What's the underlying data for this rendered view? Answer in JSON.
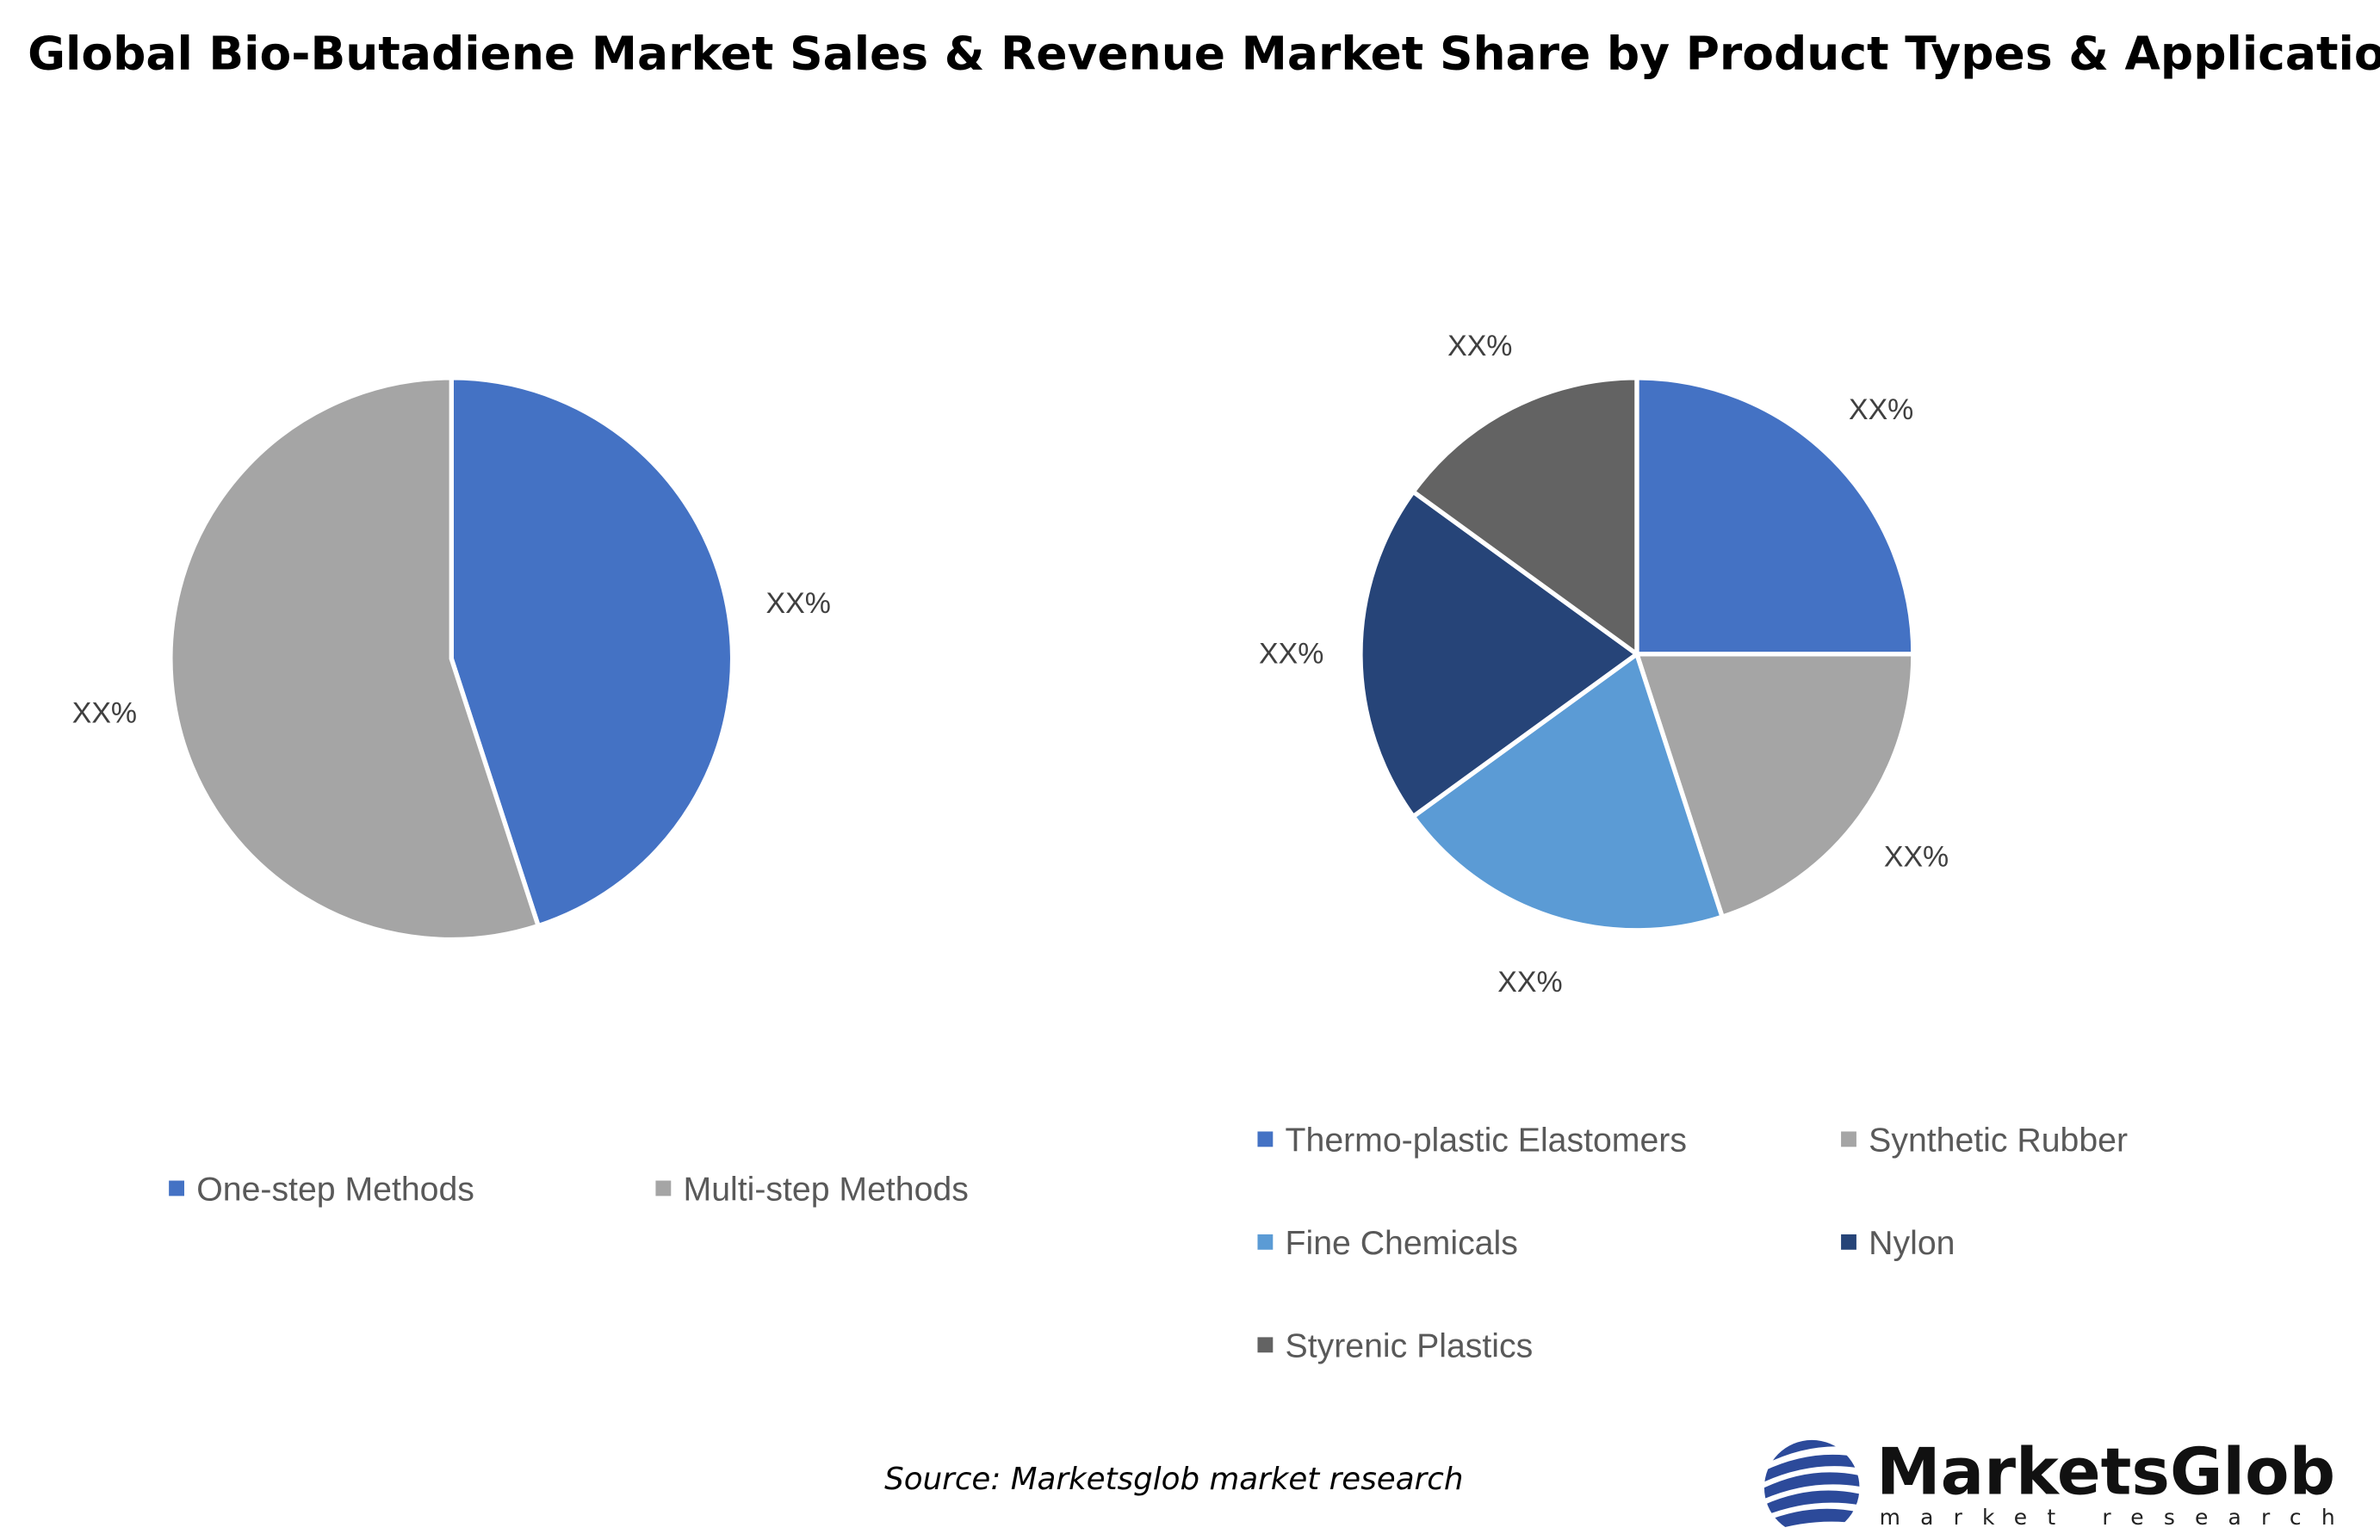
{
  "title": "Global Bio-Butadiene Market Sales & Revenue Market Share by Product Types & Application",
  "source": "Source: Marketsglob market research",
  "logo": {
    "name": "MarketsGlob",
    "tagline": "market research",
    "icon": "globe-stripes-icon"
  },
  "chart_data": [
    {
      "type": "pie",
      "categories": [
        "One-step Methods",
        "Multi-step Methods"
      ],
      "values": [
        45,
        55
      ],
      "labels": [
        "XX%",
        "XX%"
      ],
      "colors": [
        "#4472C4",
        "#A5A5A5"
      ],
      "legend": "bottom"
    },
    {
      "type": "pie",
      "categories": [
        "Thermo-plastic Elastomers",
        "Synthetic Rubber",
        "Fine Chemicals",
        "Nylon",
        "Styrenic Plastics"
      ],
      "values": [
        25,
        20,
        20,
        20,
        15
      ],
      "labels": [
        "XX%",
        "XX%",
        "XX%",
        "XX%",
        "XX%"
      ],
      "colors": [
        "#4472C4",
        "#A5A5A5",
        "#5B9BD5",
        "#264478",
        "#636363"
      ],
      "legend": "bottom"
    }
  ]
}
